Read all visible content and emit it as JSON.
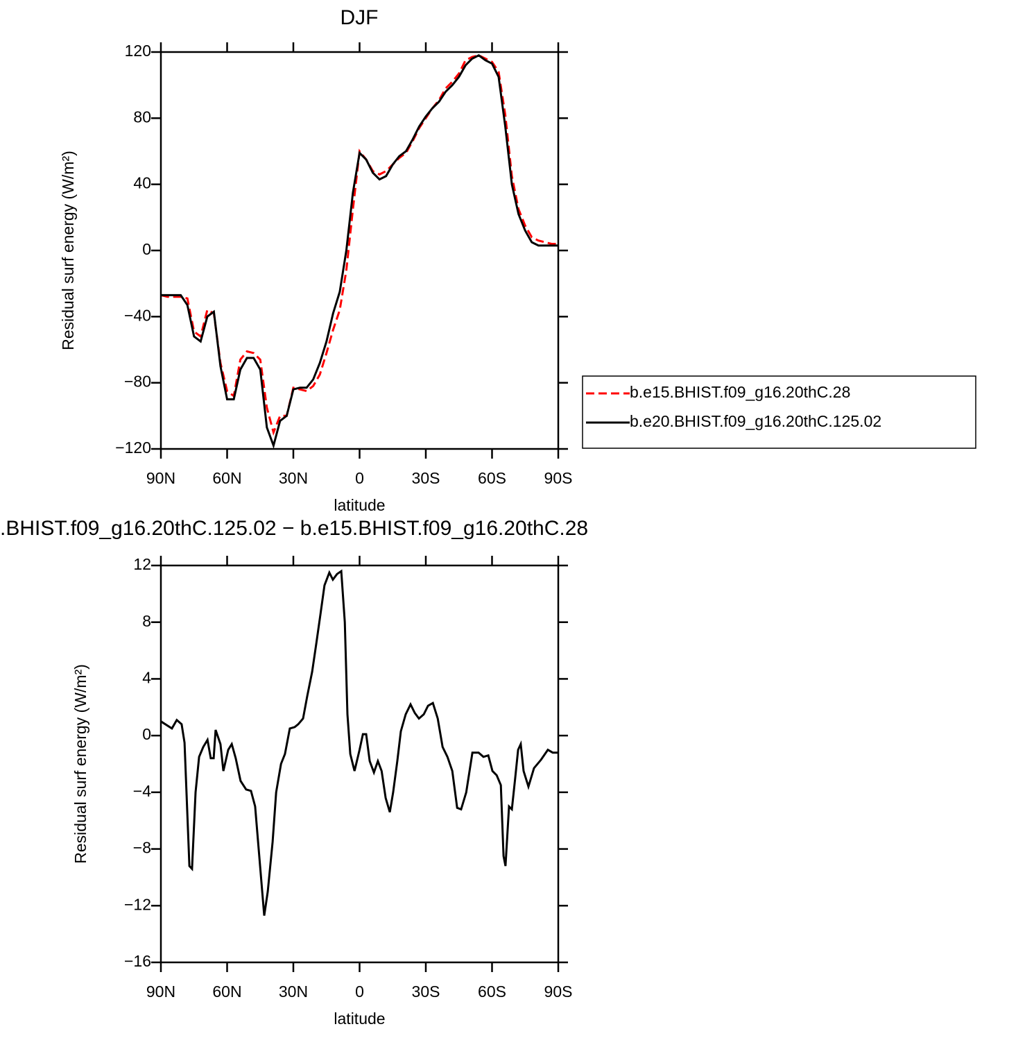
{
  "chart_data": [
    {
      "type": "line",
      "title": "DJF",
      "xlabel": "latitude",
      "ylabel": "Residual surf energy (W/m²)",
      "x": [
        90,
        87,
        84,
        81,
        78,
        75,
        72,
        69,
        66,
        63,
        60,
        57,
        54,
        51,
        48,
        45,
        42,
        39,
        36,
        33,
        30,
        27,
        24,
        21,
        18,
        15,
        12,
        9,
        6,
        3,
        0,
        -3,
        -6,
        -9,
        -12,
        -15,
        -18,
        -21,
        -24,
        -27,
        -30,
        -33,
        -36,
        -39,
        -42,
        -45,
        -48,
        -51,
        -54,
        -57,
        -60,
        -63,
        -66,
        -69,
        -72,
        -75,
        -78,
        -81,
        -84,
        -87,
        -90
      ],
      "series": [
        {
          "name": "b.e15.BHIST.f09_g16.20thC.28",
          "color": "#ff0000",
          "style": "dashed",
          "values": [
            -27,
            -28,
            -28,
            -28,
            -29,
            -49,
            -52,
            -36,
            -38,
            -68,
            -85,
            -88,
            -66,
            -61,
            -62,
            -66,
            -95,
            -110,
            -100,
            -100,
            -83,
            -84,
            -85,
            -82,
            -75,
            -62,
            -48,
            -36,
            -12,
            25,
            60,
            55,
            48,
            46,
            48,
            52,
            56,
            59,
            66,
            74,
            80,
            86,
            91,
            98,
            102,
            107,
            115,
            117,
            118,
            116,
            114,
            108,
            82,
            45,
            25,
            15,
            8,
            6,
            5,
            4,
            4
          ]
        },
        {
          "name": "b.e20.BHIST.f09_g16.20thC.125.02",
          "color": "#000000",
          "style": "solid",
          "values": [
            -27,
            -27,
            -27,
            -27,
            -33,
            -52,
            -55,
            -40,
            -37,
            -70,
            -90,
            -90,
            -72,
            -65,
            -65,
            -72,
            -107,
            -118,
            -103,
            -100,
            -84,
            -83,
            -83,
            -78,
            -68,
            -55,
            -38,
            -25,
            0,
            35,
            59,
            55,
            47,
            43,
            45,
            52,
            57,
            60,
            67,
            75,
            81,
            86,
            90,
            96,
            100,
            105,
            112,
            116,
            118,
            115,
            113,
            105,
            75,
            40,
            22,
            12,
            5,
            3,
            3,
            3,
            3
          ]
        }
      ],
      "xlim": [
        90,
        -90
      ],
      "xticks": [
        {
          "value": 90,
          "label": "90N"
        },
        {
          "value": 60,
          "label": "60N"
        },
        {
          "value": 30,
          "label": "30N"
        },
        0,
        {
          "value": -30,
          "label": "30S"
        },
        {
          "value": -60,
          "label": "60S"
        },
        {
          "value": -90,
          "label": "90S"
        }
      ],
      "ylim": [
        -120,
        120
      ],
      "yticks": [
        {
          "value": -120,
          "label": "−120"
        },
        {
          "value": -80,
          "label": "−80"
        },
        {
          "value": -40,
          "label": "−40"
        },
        0,
        40,
        80,
        120
      ],
      "legend": "right"
    },
    {
      "type": "line",
      "title": ".BHIST.f09_g16.20thC.125.02 − b.e15.BHIST.f09_g16.20thC.28",
      "xlabel": "latitude",
      "ylabel": "Residual surf energy (W/m²)",
      "x": [
        90,
        85,
        82.8,
        80.6,
        79.3,
        77.1,
        75.9,
        74.3,
        72.7,
        70.8,
        68.9,
        67.4,
        66.1,
        65.2,
        63,
        61.7,
        59.5,
        57.9,
        56.1,
        53.9,
        51.4,
        49.2,
        47.3,
        45.7,
        44.1,
        43.2,
        41.6,
        39.4,
        37.8,
        35.6,
        33.8,
        31.6,
        29.4,
        27.8,
        25.6,
        23.7,
        21.5,
        19.6,
        17.7,
        15.9,
        13.7,
        12.1,
        10.2,
        8.3,
        6.7,
        5.5,
        4.2,
        2.3,
        0,
        -1.5,
        -3,
        -4.6,
        -6.5,
        -8.3,
        -10,
        -11.8,
        -13.7,
        -15.2,
        -17.1,
        -18.7,
        -20.9,
        -23.1,
        -25,
        -26.9,
        -29.1,
        -31,
        -33.2,
        -35.4,
        -37.6,
        -39.8,
        -42,
        -44.2,
        -46,
        -48.3,
        -51.1,
        -53.9,
        -56.1,
        -58.3,
        -60.2,
        -62.1,
        -64,
        -65.2,
        -66.1,
        -67.7,
        -69,
        -70.5,
        -71.8,
        -73,
        -74.3,
        -76.5,
        -79,
        -82.2,
        -85.3,
        -87.5,
        -90
      ],
      "color": "#000000",
      "values": [
        1,
        0.5,
        1.1,
        0.8,
        -0.5,
        -9.2,
        -9.4,
        -4,
        -1.5,
        -0.8,
        -0.3,
        -1.6,
        -1.6,
        0.4,
        -0.6,
        -2.5,
        -1,
        -0.6,
        -1.6,
        -3.2,
        -3.8,
        -3.9,
        -5,
        -8,
        -11,
        -12.7,
        -11,
        -7.5,
        -4,
        -2,
        -1.3,
        0.5,
        0.6,
        0.8,
        1.2,
        2.8,
        4.5,
        6.5,
        8.6,
        10.6,
        11.5,
        11,
        11.4,
        11.6,
        8,
        1.5,
        -1.3,
        -2.5,
        -1,
        0.1,
        0.1,
        -1.8,
        -2.6,
        -1.8,
        -2.5,
        -4.4,
        -5.4,
        -4,
        -1.8,
        0.3,
        1.5,
        2.2,
        1.6,
        1.2,
        1.5,
        2.1,
        2.3,
        1.2,
        -0.8,
        -1.5,
        -2.5,
        -5.1,
        -5.2,
        -4,
        -1.2,
        -1.2,
        -1.5,
        -1.4,
        -2.5,
        -2.8,
        -3.5,
        -8.5,
        -9.2,
        -5,
        -5.2,
        -3,
        -1,
        -0.6,
        -2.5,
        -3.6,
        -2.3,
        -1.7,
        -1,
        -1.2,
        -1.2
      ],
      "xlim": [
        90,
        -90
      ],
      "xticks": [
        {
          "value": 90,
          "label": "90N"
        },
        {
          "value": 60,
          "label": "60N"
        },
        {
          "value": 30,
          "label": "30N"
        },
        0,
        {
          "value": -30,
          "label": "30S"
        },
        {
          "value": -60,
          "label": "60S"
        },
        {
          "value": -90,
          "label": "90S"
        }
      ],
      "ylim": [
        -16,
        12
      ],
      "yticks": [
        {
          "value": -16,
          "label": "−16"
        },
        {
          "value": -12,
          "label": "−12"
        },
        {
          "value": -8,
          "label": "−8"
        },
        {
          "value": -4,
          "label": "−4"
        },
        0,
        4,
        8,
        12
      ]
    }
  ]
}
